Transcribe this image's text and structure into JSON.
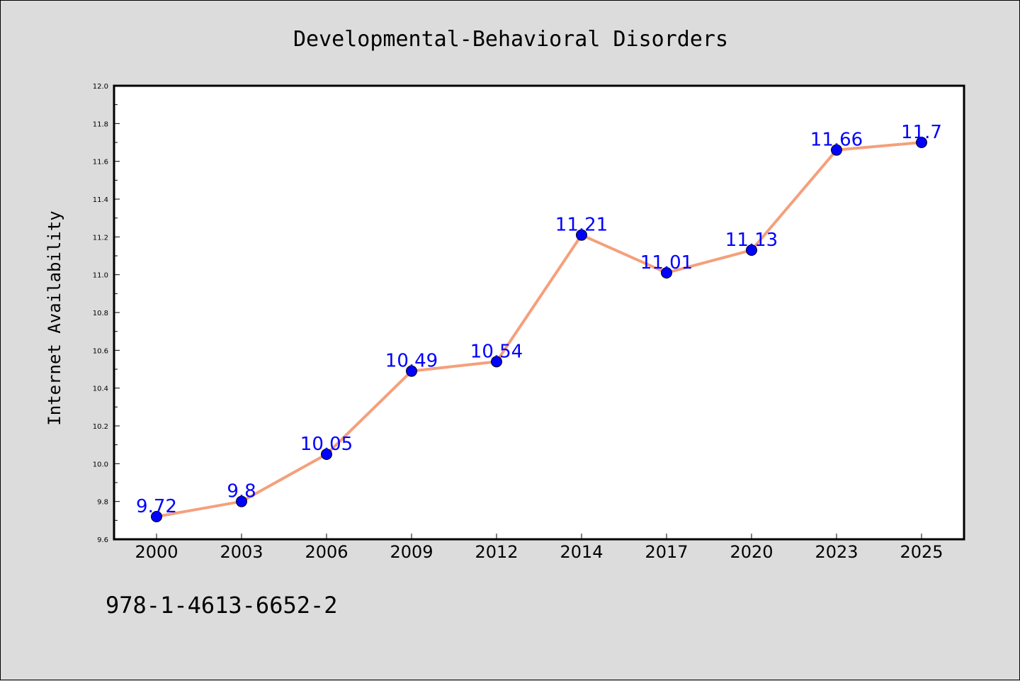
{
  "colors": {
    "background": "#dcdcdc",
    "plot_background": "#ffffff",
    "line": "#f4a07c",
    "marker": "#0000ff",
    "data_label": "#0000ff"
  },
  "isbn": "978-1-4613-6652-2",
  "chart_data": {
    "type": "line",
    "title": "Developmental-Behavioral Disorders",
    "xlabel": "",
    "ylabel": "Internet Availability",
    "categories": [
      "2000",
      "2003",
      "2006",
      "2009",
      "2012",
      "2014",
      "2017",
      "2020",
      "2023",
      "2025"
    ],
    "series": [
      {
        "values": [
          9.72,
          9.8,
          10.05,
          10.49,
          10.54,
          11.21,
          11.01,
          11.13,
          11.66,
          11.7
        ],
        "labels": [
          "9.72",
          "9.8",
          "10.05",
          "10.49",
          "10.54",
          "11.21",
          "11.01",
          "11.13",
          "11.66",
          "11.7"
        ]
      }
    ],
    "ylim": [
      9.6,
      12.0
    ],
    "yticks": [
      "9.6",
      "9.8",
      "10.0",
      "10.2",
      "10.4",
      "10.6",
      "10.8",
      "11.0",
      "11.2",
      "11.4",
      "11.6",
      "11.8",
      "12.0"
    ],
    "grid": false,
    "legend": "none"
  }
}
